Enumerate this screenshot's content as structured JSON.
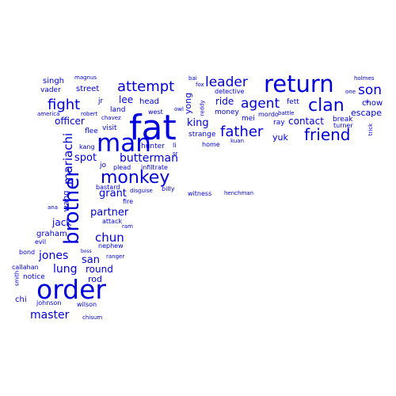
{
  "color": "#0000dd",
  "words": [
    "fat",
    "man",
    "order",
    "brother",
    "return",
    "monkey",
    "clan",
    "friend",
    "attempt",
    "fight",
    "father",
    "agent",
    "leader",
    "son",
    "mariachi",
    "chun",
    "jones",
    "master",
    "lung",
    "butterman",
    "spot",
    "partner",
    "san",
    "grant",
    "king",
    "lee",
    "officer",
    "contact",
    "jack",
    "round",
    "yong",
    "escape",
    "ride",
    "head",
    "street",
    "graham",
    "singh",
    "rod",
    "chow",
    "yuk",
    "money",
    "home",
    "strange",
    "chi",
    "notice",
    "hunter",
    "break",
    "ray",
    "fett",
    "turner",
    "mei",
    "wang",
    "vader",
    "land",
    "visit",
    "jr",
    "flee",
    "kang",
    "jo",
    "plead",
    "infiltrate",
    "billy",
    "witness",
    "henchman",
    "attack",
    "ram",
    "fire",
    "disguise",
    "bastard",
    "ana",
    "evil",
    "bond",
    "boss",
    "ranger",
    "nephew",
    "callahan",
    "smith",
    "johnson",
    "wilson",
    "chisum",
    "holmes",
    "one",
    "battle",
    "mordo",
    "kuan",
    "reddy",
    "detective",
    "fox",
    "bai",
    "owl",
    "west",
    "li",
    "sr",
    "chavez",
    "robert",
    "america",
    "magnus",
    "trick",
    "x"
  ]
}
